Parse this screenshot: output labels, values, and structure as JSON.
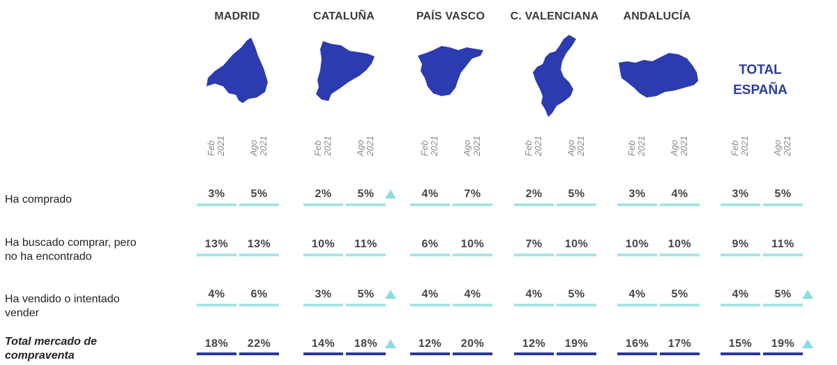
{
  "regions": [
    "MADRID",
    "CATALUÑA",
    "PAÍS VASCO",
    "C. VALENCIANA",
    "ANDALUCÍA"
  ],
  "total_title": [
    "TOTAL",
    "ESPAÑA"
  ],
  "periods": [
    {
      "month": "Feb",
      "year": "2021"
    },
    {
      "month": "Ago",
      "year": "2021"
    }
  ],
  "rows": [
    {
      "label": [
        "Ha comprado"
      ],
      "total": false
    },
    {
      "label": [
        "Ha buscado comprar, pero",
        "no ha encontrado"
      ],
      "total": false
    },
    {
      "label": [
        "Ha vendido o intentado",
        "vender"
      ],
      "total": false
    },
    {
      "label": [
        "Total mercado de",
        "compraventa"
      ],
      "total": true
    }
  ],
  "chart_data": {
    "type": "table",
    "columns": [
      "MADRID",
      "CATALUÑA",
      "PAÍS VASCO",
      "C. VALENCIANA",
      "ANDALUCÍA",
      "TOTAL ESPAÑA"
    ],
    "periods": [
      "Feb 2021",
      "Ago 2021"
    ],
    "row_labels": [
      "Ha comprado",
      "Ha buscado comprar, pero no ha encontrado",
      "Ha vendido o intentado vender",
      "Total mercado de compraventa"
    ],
    "values": [
      [
        [
          "3%",
          "5%"
        ],
        [
          "2%",
          "5%"
        ],
        [
          "4%",
          "7%"
        ],
        [
          "2%",
          "5%"
        ],
        [
          "3%",
          "4%"
        ],
        [
          "3%",
          "5%"
        ]
      ],
      [
        [
          "13%",
          "13%"
        ],
        [
          "10%",
          "11%"
        ],
        [
          "6%",
          "10%"
        ],
        [
          "7%",
          "10%"
        ],
        [
          "10%",
          "10%"
        ],
        [
          "9%",
          "11%"
        ]
      ],
      [
        [
          "4%",
          "6%"
        ],
        [
          "3%",
          "5%"
        ],
        [
          "4%",
          "4%"
        ],
        [
          "4%",
          "5%"
        ],
        [
          "4%",
          "5%"
        ],
        [
          "4%",
          "5%"
        ]
      ],
      [
        [
          "18%",
          "22%"
        ],
        [
          "14%",
          "18%"
        ],
        [
          "12%",
          "20%"
        ],
        [
          "12%",
          "19%"
        ],
        [
          "16%",
          "17%"
        ],
        [
          "15%",
          "19%"
        ]
      ]
    ],
    "increase_markers": [
      [
        0,
        1
      ],
      [
        2,
        1
      ],
      [
        2,
        5
      ],
      [
        3,
        1
      ],
      [
        3,
        5
      ]
    ],
    "colors": {
      "map": "#2d3bb0",
      "bar": "#a6e5e4",
      "total_bar": "#2a37a0",
      "marker": "#8fdcdc",
      "total_title": "#2b3aa8"
    }
  }
}
